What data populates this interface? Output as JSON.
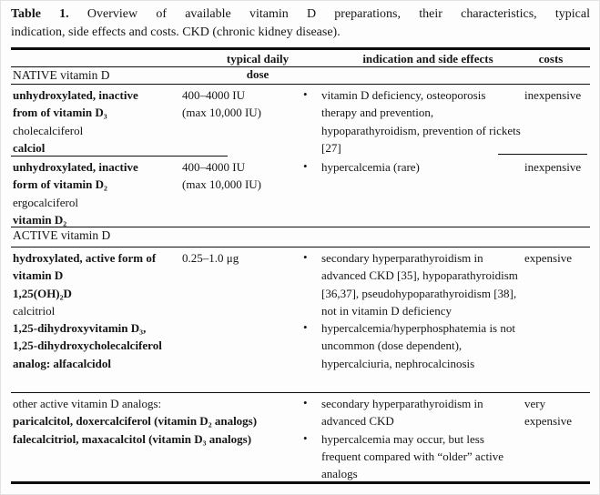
{
  "caption": {
    "label": "Table 1.",
    "line1_rest": "Overview of available vitamin D preparations, their characteristics, typical",
    "line2": "indication, side effects and costs. CKD (chronic kidney disease)."
  },
  "glyphs": {
    "bullet": "•"
  },
  "colors": {
    "text": "#161616",
    "rule": "#0d0d0d",
    "background": "#fdfdfd"
  },
  "table": {
    "headers": {
      "dose": "typical daily dose",
      "indication": "indication and side effects",
      "costs": "costs"
    },
    "sections": [
      {
        "title": "NATIVE vitamin D"
      },
      {
        "title": "ACTIVE vitamin D"
      }
    ],
    "rows": [
      {
        "name_lines": [
          "unhydroxylated, inactive",
          "from of vitamin D₃",
          "cholecalciferol",
          "calciol"
        ],
        "dose_lines": [
          "400–4000 IU",
          "(max 10,000 IU)"
        ],
        "indications": [
          "vitamin D deficiency, osteoporosis therapy and prevention, hypoparathyroidism, prevention of rickets [27]"
        ],
        "costs": "inexpensive"
      },
      {
        "name_lines": [
          "unhydroxylated, inactive",
          "form of vitamin D₂",
          "ergocalciferol",
          "vitamin D₂"
        ],
        "dose_lines": [
          "400–4000 IU",
          "(max 10,000 IU)"
        ],
        "indications": [
          "hypercalcemia (rare)"
        ],
        "costs": "inexpensive"
      },
      {
        "name_lines": [
          "hydroxylated, active form of",
          "vitamin D",
          "1,25(OH)₂D",
          "calcitriol",
          "1,25-dihydroxyvitamin D₃,",
          "1,25-dihydroxycholecalciferol",
          "analog: alfacalcidol"
        ],
        "dose_lines": [
          "0.25–1.0 μg"
        ],
        "indications": [
          "secondary hyperparathyroidism in advanced CKD [35], hypoparathyroidism [36,37], pseudohypoparathyroidism [38], not in vitamin D deficiency",
          "hypercalcemia/hyperphosphatemia is not uncommon (dose dependent), hypercalciuria, nephrocalcinosis"
        ],
        "costs": "expensive"
      },
      {
        "name_lines": [
          "other active vitamin D analogs:",
          "paricalcitol, doxercalciferol (vitamin D₂ analogs)",
          "falecalcitriol, maxacalcitol (vitamin D₃ analogs)"
        ],
        "dose_lines": [],
        "indications": [
          "secondary hyperparathyroidism in advanced CKD",
          "hypercalcemia may occur, but less frequent compared with “older” active analogs"
        ],
        "costs": "very expensive"
      }
    ]
  }
}
